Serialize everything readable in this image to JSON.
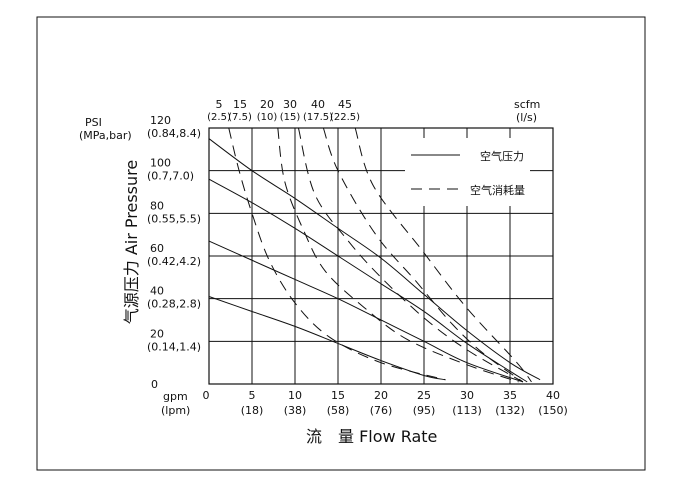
{
  "chart_data": {
    "type": "line",
    "title": "",
    "xlabel": "流　量 Flow Rate",
    "ylabel": "气源压力 Air Pressure",
    "x_unit": [
      "gpm",
      "(lpm)"
    ],
    "y_unit": [
      "PSI",
      "(MPa,bar)"
    ],
    "xlim": [
      0,
      40
    ],
    "ylim": [
      0,
      120
    ],
    "grid": true,
    "x_ticks": [
      {
        "value": 0,
        "label": "0",
        "sub": ""
      },
      {
        "value": 5,
        "label": "5",
        "sub": "(18)"
      },
      {
        "value": 10,
        "label": "10",
        "sub": "(38)"
      },
      {
        "value": 15,
        "label": "15",
        "sub": "(58)"
      },
      {
        "value": 20,
        "label": "20",
        "sub": "(76)"
      },
      {
        "value": 25,
        "label": "25",
        "sub": "(95)"
      },
      {
        "value": 30,
        "label": "30",
        "sub": "(113)"
      },
      {
        "value": 35,
        "label": "35",
        "sub": "(132)"
      },
      {
        "value": 40,
        "label": "40",
        "sub": "(150)"
      }
    ],
    "y_ticks": [
      {
        "value": 0,
        "label": "0",
        "sub": ""
      },
      {
        "value": 20,
        "label": "20",
        "sub": "(0.14,1.4)"
      },
      {
        "value": 40,
        "label": "40",
        "sub": "(0.28,2.8)"
      },
      {
        "value": 60,
        "label": "60",
        "sub": "(0.42,4.2)"
      },
      {
        "value": 80,
        "label": "80",
        "sub": "(0.55,5.5)"
      },
      {
        "value": 100,
        "label": "100",
        "sub": "(0.7,7.0)"
      },
      {
        "value": 120,
        "label": "120",
        "sub": "(0.84,8.4)"
      }
    ],
    "top_axis": {
      "unit": [
        "scfm",
        "(l/s)"
      ],
      "labels": [
        {
          "label": "5",
          "sub": "(2.5)"
        },
        {
          "label": "15",
          "sub": "(7.5)"
        },
        {
          "label": "20",
          "sub": "(10)"
        },
        {
          "label": "30",
          "sub": "(15)"
        },
        {
          "label": "40",
          "sub": "(17.5)"
        },
        {
          "label": "45",
          "sub": "(22.5)"
        }
      ]
    },
    "legend": {
      "placement": "top-right",
      "entries": [
        {
          "label": "空气压力",
          "style": "solid"
        },
        {
          "label": "空气消耗量",
          "style": "dashed"
        }
      ]
    },
    "series": [
      {
        "style": "solid",
        "points": [
          [
            0,
            115
          ],
          [
            5,
            100
          ],
          [
            10,
            87
          ],
          [
            15,
            73
          ],
          [
            20,
            59
          ],
          [
            25,
            42
          ],
          [
            30,
            25
          ],
          [
            35,
            10
          ],
          [
            38.5,
            2
          ]
        ]
      },
      {
        "style": "solid",
        "points": [
          [
            0,
            96
          ],
          [
            5,
            85
          ],
          [
            10,
            73
          ],
          [
            15,
            60
          ],
          [
            20,
            47
          ],
          [
            25,
            34
          ],
          [
            30,
            19
          ],
          [
            35,
            6
          ],
          [
            37,
            1
          ]
        ]
      },
      {
        "style": "solid",
        "points": [
          [
            0,
            67
          ],
          [
            5,
            58
          ],
          [
            10,
            49
          ],
          [
            15,
            40
          ],
          [
            20,
            30
          ],
          [
            25,
            20
          ],
          [
            30,
            10
          ],
          [
            36.5,
            1
          ]
        ]
      },
      {
        "style": "solid",
        "points": [
          [
            0,
            41
          ],
          [
            5,
            34
          ],
          [
            10,
            27
          ],
          [
            15,
            19
          ],
          [
            20,
            11
          ],
          [
            25,
            4
          ],
          [
            27.5,
            2
          ]
        ]
      },
      {
        "style": "dashed",
        "points": [
          [
            2.3,
            120
          ],
          [
            3.5,
            100
          ],
          [
            5,
            80
          ],
          [
            7,
            58
          ],
          [
            10,
            38
          ],
          [
            14,
            22
          ],
          [
            20,
            10
          ],
          [
            27.5,
            2
          ]
        ]
      },
      {
        "style": "dashed",
        "points": [
          [
            8,
            120
          ],
          [
            8.8,
            95
          ],
          [
            11,
            72
          ],
          [
            13.5,
            53
          ],
          [
            18,
            36
          ],
          [
            23,
            21
          ],
          [
            30,
            9
          ],
          [
            36,
            1
          ]
        ]
      },
      {
        "style": "dashed",
        "points": [
          [
            10.4,
            120
          ],
          [
            12.3,
            89
          ],
          [
            16.2,
            67
          ],
          [
            20,
            50
          ],
          [
            25,
            31
          ],
          [
            30,
            16
          ],
          [
            36.5,
            1
          ]
        ]
      },
      {
        "style": "dashed",
        "points": [
          [
            13.3,
            120
          ],
          [
            15,
            100
          ],
          [
            19.4,
            70
          ],
          [
            24.1,
            48
          ],
          [
            28.3,
            28
          ],
          [
            32,
            14
          ],
          [
            36.5,
            1
          ]
        ]
      },
      {
        "style": "dashed",
        "points": [
          [
            17,
            120
          ],
          [
            19.1,
            93
          ],
          [
            24.9,
            62
          ],
          [
            29.9,
            36
          ],
          [
            35.7,
            10.5
          ],
          [
            37.5,
            1
          ]
        ]
      }
    ],
    "colors": {
      "line": "#111111",
      "grid": "#111111",
      "background": "#ffffff"
    }
  }
}
